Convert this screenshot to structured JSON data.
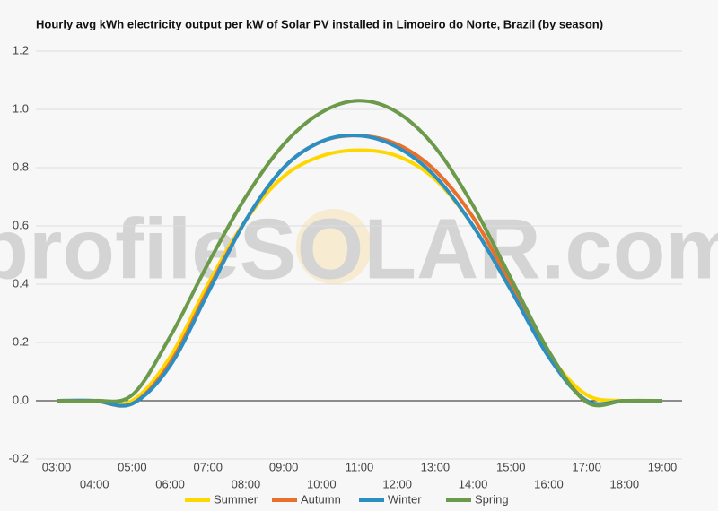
{
  "chart_data": {
    "type": "line",
    "title": "Hourly avg kWh electricity output per kW of Solar PV installed in Limoeiro do Norte, Brazil (by season)",
    "watermark": "profileSOLAR.com",
    "categories": [
      "03:00",
      "04:00",
      "05:00",
      "06:00",
      "07:00",
      "08:00",
      "09:00",
      "10:00",
      "11:00",
      "12:00",
      "13:00",
      "14:00",
      "15:00",
      "16:00",
      "17:00",
      "18:00",
      "19:00"
    ],
    "series": [
      {
        "name": "Summer",
        "color": "#ffd700",
        "values": [
          0,
          0,
          0,
          0.15,
          0.4,
          0.62,
          0.77,
          0.84,
          0.86,
          0.84,
          0.76,
          0.6,
          0.38,
          0.16,
          0.02,
          0,
          0
        ]
      },
      {
        "name": "Autumn",
        "color": "#e8702a",
        "values": [
          0,
          0,
          -0.01,
          0.13,
          0.38,
          0.62,
          0.8,
          0.89,
          0.91,
          0.88,
          0.79,
          0.63,
          0.4,
          0.16,
          0,
          0,
          0
        ]
      },
      {
        "name": "Winter",
        "color": "#2b8fc4",
        "values": [
          0,
          0,
          -0.01,
          0.12,
          0.37,
          0.62,
          0.8,
          0.89,
          0.91,
          0.87,
          0.77,
          0.6,
          0.38,
          0.15,
          0,
          0,
          0
        ]
      },
      {
        "name": "Spring",
        "color": "#6b9a4b",
        "values": [
          0,
          0,
          0.02,
          0.22,
          0.47,
          0.7,
          0.88,
          0.99,
          1.03,
          0.99,
          0.87,
          0.67,
          0.42,
          0.17,
          -0.005,
          0,
          0
        ]
      }
    ],
    "ylim": [
      -0.2,
      1.2
    ],
    "yticks": [
      -0.2,
      {
        "value": 0,
        "label": "0.0"
      },
      0.2,
      0.4,
      0.6,
      0.8,
      {
        "value": 1,
        "label": "1.0"
      },
      1.2
    ],
    "grid": true,
    "legend": "bottom"
  }
}
